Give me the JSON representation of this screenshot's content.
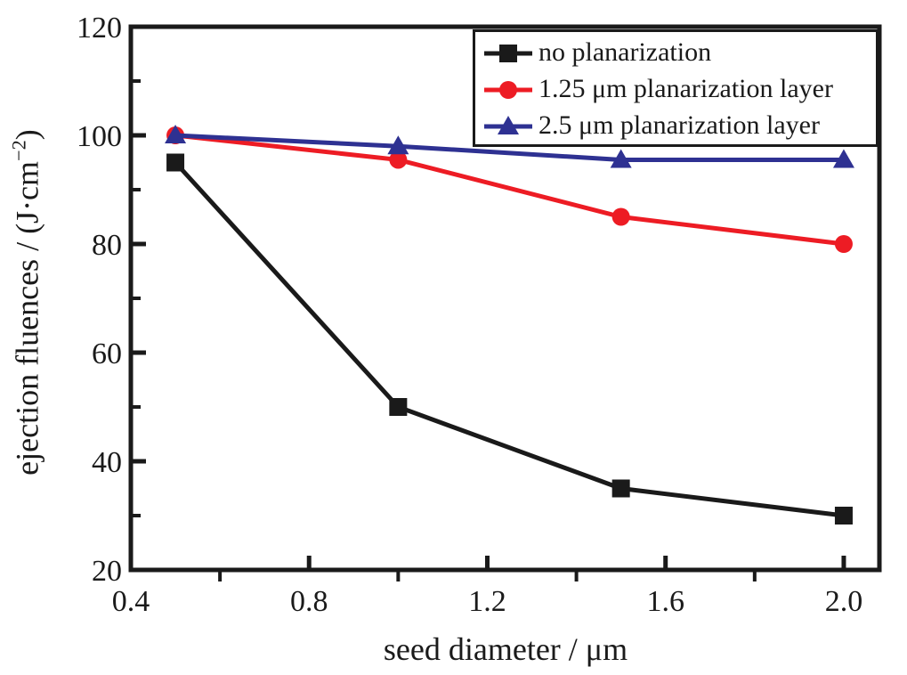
{
  "figure": {
    "background": "#ffffff",
    "axis_color": "#1a1a1a"
  },
  "chart_data": {
    "type": "line",
    "title": "",
    "xlabel": "seed diameter / μm",
    "ylabel": "ejection fluences / (J·cm⁻²)",
    "ylabel_parts": {
      "pre": "ejection fluences / (J·cm",
      "sup": "−2",
      "post": ")"
    },
    "x": [
      0.5,
      1.0,
      1.5,
      2.0
    ],
    "series": [
      {
        "name": "no planarization",
        "color": "#1a1a1a",
        "marker": "square",
        "values": [
          95,
          50,
          35,
          30
        ]
      },
      {
        "name": "1.25 μm planarization layer",
        "color": "#ed1c24",
        "marker": "circle",
        "values": [
          100,
          95.5,
          85,
          80
        ]
      },
      {
        "name": "2.5 μm planarization layer",
        "color": "#2e3192",
        "marker": "triangle",
        "values": [
          100,
          98,
          95.5,
          95.5
        ]
      }
    ],
    "xlim": [
      0.4,
      2.08
    ],
    "ylim": [
      20,
      120
    ],
    "xticks": [
      0.4,
      0.8,
      1.2,
      1.6,
      2.0
    ],
    "xtick_labels": [
      "0.4",
      "0.8",
      "1.2",
      "1.6",
      "2.0"
    ],
    "xminorticks": [
      0.6,
      1.0,
      1.4,
      1.8
    ],
    "yticks": [
      20,
      40,
      60,
      80,
      100,
      120
    ],
    "ytick_labels": [
      "20",
      "40",
      "60",
      "80",
      "100",
      "120"
    ],
    "yminorticks": [
      30,
      50,
      70,
      90,
      110
    ],
    "grid": false,
    "legend_position": "top-right"
  }
}
